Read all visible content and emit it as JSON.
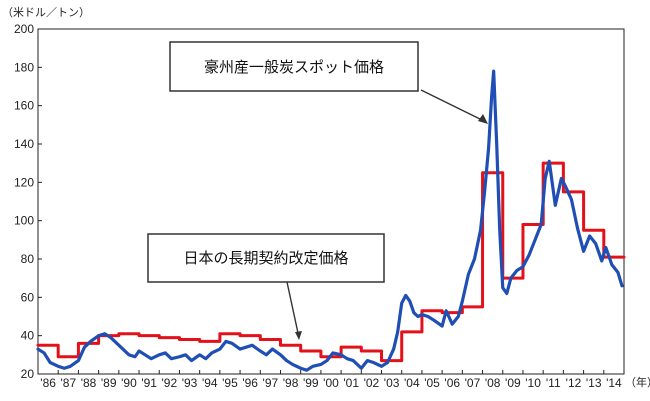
{
  "chart_data": {
    "type": "line",
    "y_unit_label": "（米ドル／トン）",
    "x_unit_label": "（年）",
    "ylim": [
      20,
      200
    ],
    "yticks": [
      20,
      40,
      60,
      80,
      100,
      120,
      140,
      160,
      180,
      200
    ],
    "xlim": [
      1986.0,
      2015.0
    ],
    "categories": [
      "'86",
      "'87",
      "'88",
      "'89",
      "'90",
      "'91",
      "'92",
      "'93",
      "'94",
      "'95",
      "'96",
      "'97",
      "'98",
      "'99",
      "'00",
      "'01",
      "'02",
      "'03",
      "'04",
      "'05",
      "'06",
      "'07",
      "'08",
      "'09",
      "'10",
      "'11",
      "'12",
      "'13",
      "'14"
    ],
    "grid": false,
    "legend": "callout",
    "series": [
      {
        "name": "豪州産一般炭スポット価格",
        "color": "#1f4fb4",
        "x": [
          1986.0,
          1986.3,
          1986.6,
          1987.0,
          1987.3,
          1987.6,
          1988.0,
          1988.3,
          1988.6,
          1989.0,
          1989.3,
          1989.6,
          1989.9,
          1990.2,
          1990.5,
          1990.8,
          1991.0,
          1991.3,
          1991.6,
          1992.0,
          1992.3,
          1992.6,
          1993.0,
          1993.3,
          1993.6,
          1994.0,
          1994.3,
          1994.6,
          1995.0,
          1995.3,
          1995.6,
          1996.0,
          1996.3,
          1996.6,
          1997.0,
          1997.3,
          1997.6,
          1998.0,
          1998.3,
          1998.6,
          1999.0,
          1999.3,
          1999.6,
          2000.0,
          2000.3,
          2000.6,
          2001.0,
          2001.3,
          2001.6,
          2002.0,
          2002.3,
          2002.6,
          2003.0,
          2003.3,
          2003.6,
          2003.8,
          2004.0,
          2004.2,
          2004.4,
          2004.6,
          2004.8,
          2005.0,
          2005.3,
          2005.6,
          2006.0,
          2006.2,
          2006.5,
          2006.8,
          2007.0,
          2007.3,
          2007.6,
          2007.9,
          2008.1,
          2008.3,
          2008.45,
          2008.55,
          2008.7,
          2008.85,
          2009.0,
          2009.2,
          2009.4,
          2009.7,
          2010.0,
          2010.3,
          2010.6,
          2010.9,
          2011.1,
          2011.3,
          2011.6,
          2011.9,
          2012.1,
          2012.4,
          2012.7,
          2013.0,
          2013.3,
          2013.6,
          2013.9,
          2014.1,
          2014.4,
          2014.7,
          2014.9
        ],
        "values": [
          33,
          31,
          26,
          24,
          23,
          24,
          27,
          34,
          37,
          40,
          41,
          39,
          36,
          33,
          30,
          29,
          32,
          30,
          28,
          30,
          31,
          28,
          29,
          30,
          27,
          30,
          28,
          31,
          33,
          37,
          36,
          33,
          34,
          35,
          32,
          30,
          33,
          30,
          27,
          25,
          23,
          22,
          24,
          25,
          27,
          31,
          30,
          28,
          27,
          23,
          27,
          26,
          24,
          26,
          33,
          42,
          57,
          61,
          58,
          52,
          50,
          51,
          50,
          48,
          45,
          53,
          46,
          50,
          58,
          72,
          80,
          95,
          115,
          138,
          165,
          178,
          140,
          95,
          65,
          62,
          70,
          74,
          76,
          82,
          90,
          98,
          122,
          131,
          108,
          122,
          118,
          111,
          96,
          84,
          92,
          88,
          79,
          86,
          77,
          73,
          66
        ]
      },
      {
        "name": "日本の長期契約改定価格",
        "color": "#e3121a",
        "step": true,
        "x": [
          1986.0,
          1987.0,
          1988.0,
          1989.0,
          1990.0,
          1991.0,
          1992.0,
          1993.0,
          1994.0,
          1995.0,
          1996.0,
          1997.0,
          1998.0,
          1999.0,
          2000.0,
          2001.0,
          2002.0,
          2003.0,
          2004.0,
          2005.0,
          2006.0,
          2007.0,
          2008.0,
          2009.0,
          2010.0,
          2011.0,
          2012.0,
          2013.0,
          2014.0,
          2015.0
        ],
        "values": [
          35,
          29,
          36,
          40,
          41,
          40,
          39,
          38,
          37,
          41,
          40,
          38,
          35,
          32,
          29,
          34,
          32,
          27,
          42,
          53,
          52,
          55,
          125,
          70,
          98,
          130,
          115,
          95,
          81,
          81
        ]
      }
    ]
  }
}
